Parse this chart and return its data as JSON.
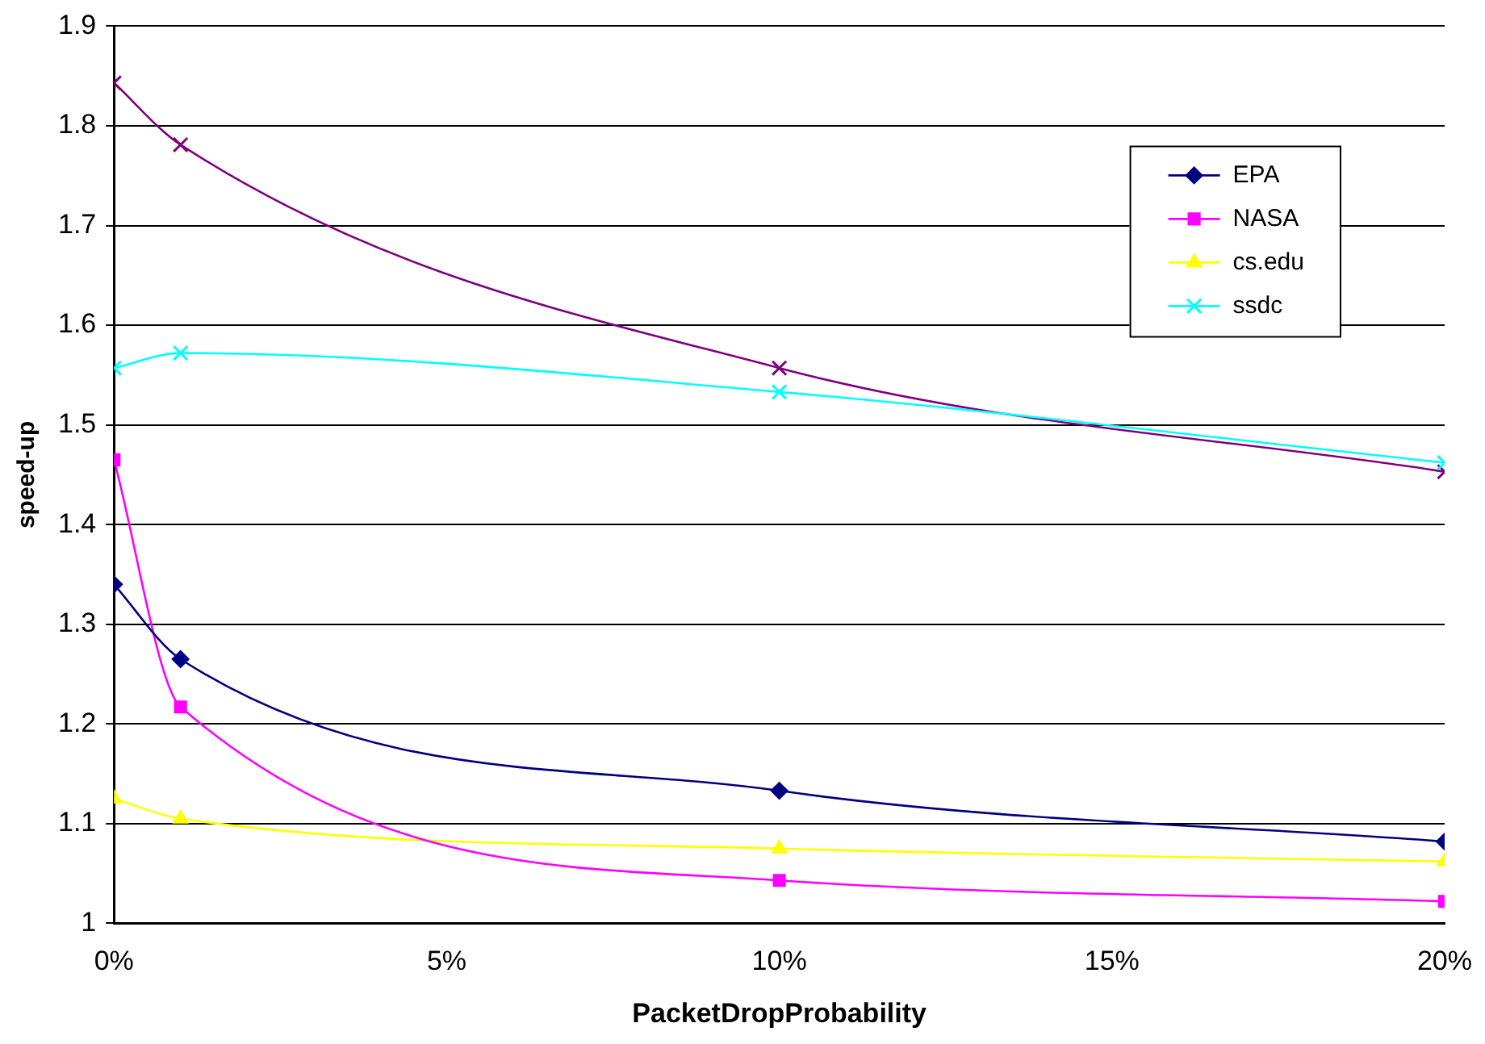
{
  "chart_data": {
    "type": "line",
    "xlabel": "PacketDropProbability",
    "ylabel": "speed-up",
    "xlim": [
      0,
      20
    ],
    "xticks": [
      {
        "value": 0,
        "label": "0%"
      },
      {
        "value": 5,
        "label": "5%"
      },
      {
        "value": 10,
        "label": "10%"
      },
      {
        "value": 15,
        "label": "15%"
      },
      {
        "value": 20,
        "label": "20%"
      }
    ],
    "ylim": [
      1,
      1.9
    ],
    "yticks": [
      1,
      1.1,
      1.2,
      1.3,
      1.4,
      1.5,
      1.6,
      1.7,
      1.8,
      1.9
    ],
    "grid": "y",
    "legend": "top right",
    "x": [
      0,
      1,
      10,
      20
    ],
    "series": [
      {
        "name": "EPA",
        "color": "#000080",
        "marker": "diamond",
        "values": [
          1.34,
          1.265,
          1.133,
          1.082
        ]
      },
      {
        "name": "NASA",
        "color": "#ff00ff",
        "marker": "square",
        "values": [
          1.465,
          1.217,
          1.043,
          1.022
        ]
      },
      {
        "name": "cs.edu",
        "color": "#ffff00",
        "marker": "triangle",
        "values": [
          1.125,
          1.105,
          1.075,
          1.062
        ]
      },
      {
        "name": "ssdc",
        "color": "#00ffff",
        "marker": "cross",
        "values": [
          1.557,
          1.572,
          1.533,
          1.462
        ]
      },
      {
        "color": "#800080",
        "marker": "cross",
        "values": [
          1.843,
          1.781,
          1.557,
          1.453
        ]
      }
    ]
  }
}
